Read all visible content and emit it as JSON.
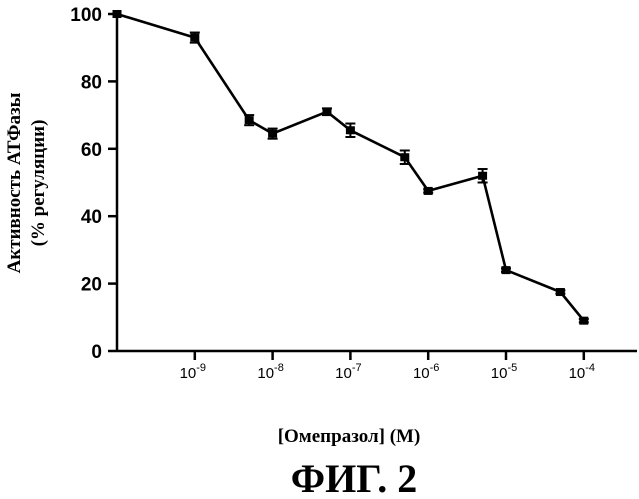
{
  "chart_data": {
    "type": "line",
    "title": "",
    "xlabel": "[Омепразол] (М)",
    "ylabel_line1": "Активность АТФазы",
    "ylabel_line2": "(% регуляции)",
    "x_scale": "log",
    "x_ticks": [
      {
        "base": "10",
        "exp": "-9"
      },
      {
        "base": "10",
        "exp": "-8"
      },
      {
        "base": "10",
        "exp": "-7"
      },
      {
        "base": "10",
        "exp": "-6"
      },
      {
        "base": "10",
        "exp": "-5"
      },
      {
        "base": "10",
        "exp": "-4"
      }
    ],
    "y_ticks": [
      "0",
      "20",
      "40",
      "60",
      "80",
      "100"
    ],
    "ylim": [
      0,
      100
    ],
    "grid": false,
    "series": [
      {
        "points": [
          {
            "x": 1e-10,
            "y": 100,
            "err": 0
          },
          {
            "x": 1e-09,
            "y": 93,
            "err": 1.5
          },
          {
            "x": 5e-09,
            "y": 68.5,
            "err": 1.5
          },
          {
            "x": 1e-08,
            "y": 64.5,
            "err": 1.5
          },
          {
            "x": 5e-08,
            "y": 71,
            "err": 1
          },
          {
            "x": 1e-07,
            "y": 65.5,
            "err": 2
          },
          {
            "x": 5e-07,
            "y": 57.5,
            "err": 2
          },
          {
            "x": 1e-06,
            "y": 47.5,
            "err": 0.5
          },
          {
            "x": 5e-06,
            "y": 52,
            "err": 2
          },
          {
            "x": 1e-05,
            "y": 24,
            "err": 0.5
          },
          {
            "x": 5e-05,
            "y": 17.5,
            "err": 0.5
          },
          {
            "x": 0.0001,
            "y": 9,
            "err": 0.5
          }
        ]
      }
    ]
  },
  "figure_caption": "ФИГ. 2"
}
